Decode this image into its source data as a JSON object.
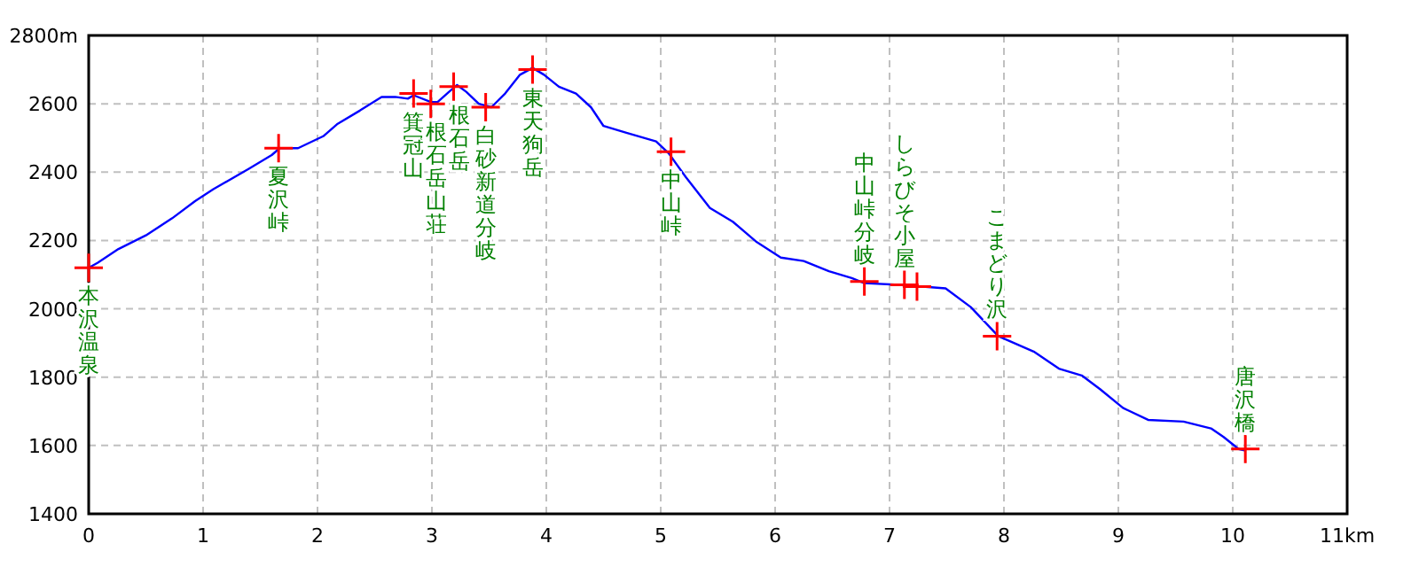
{
  "chart_data": {
    "type": "line",
    "xlim": [
      0,
      11
    ],
    "ylim": [
      1400,
      2800
    ],
    "xticks": [
      0,
      1,
      2,
      3,
      4,
      5,
      6,
      7,
      8,
      9,
      10,
      {
        "value": 11,
        "label": "11km"
      }
    ],
    "yticks": [
      1400,
      1600,
      1800,
      2000,
      2200,
      2400,
      2600,
      {
        "value": 2800,
        "label": "2800m"
      }
    ],
    "grid": true,
    "series": [
      {
        "color": "#0000ff",
        "x": [
          0,
          0.08,
          0.26,
          0.5,
          0.73,
          0.93,
          1.09,
          1.4,
          1.6,
          1.67,
          1.83,
          2.05,
          2.17,
          2.37,
          2.56,
          2.68,
          2.79,
          2.84,
          2.99,
          3.05,
          3.15,
          3.22,
          3.3,
          3.41,
          3.52,
          3.64,
          3.77,
          3.88,
          3.98,
          4.11,
          4.26,
          4.39,
          4.5,
          4.7,
          4.96,
          5.07,
          5.22,
          5.43,
          5.63,
          5.84,
          6.05,
          6.25,
          6.47,
          6.67,
          6.78,
          7.09,
          7.29,
          7.49,
          7.71,
          7.95,
          8.26,
          8.48,
          8.68,
          8.84,
          9.04,
          9.26,
          9.57,
          9.81,
          9.92,
          10.05,
          10.11
        ],
        "values": [
          2120,
          2135,
          2175,
          2215,
          2265,
          2315,
          2350,
          2410,
          2450,
          2470,
          2470,
          2505,
          2540,
          2580,
          2620,
          2620,
          2615,
          2625,
          2605,
          2605,
          2635,
          2655,
          2635,
          2600,
          2590,
          2630,
          2685,
          2705,
          2685,
          2650,
          2630,
          2590,
          2535,
          2515,
          2490,
          2455,
          2385,
          2295,
          2255,
          2195,
          2150,
          2140,
          2110,
          2090,
          2075,
          2070,
          2065,
          2060,
          2005,
          1920,
          1875,
          1825,
          1805,
          1765,
          1710,
          1675,
          1670,
          1650,
          1625,
          1590,
          1585
        ]
      },
      {
        "type": "scatter",
        "color": "#ff0000",
        "marker": "cross",
        "x": [
          0,
          1.66,
          2.84,
          2.99,
          3.19,
          3.47,
          3.88,
          5.09,
          6.78,
          7.13,
          7.24,
          7.94,
          10.11
        ],
        "values": [
          2120,
          2470,
          2630,
          2600,
          2650,
          2590,
          2700,
          2460,
          2080,
          2070,
          2065,
          1920,
          1590
        ]
      }
    ],
    "annotations": [
      {
        "text": "本沢温泉",
        "x": 0,
        "y": 2120
      },
      {
        "text": "夏沢峠",
        "x": 1.66,
        "y": 2470
      },
      {
        "text": "箕冠山",
        "x": 2.84,
        "y": 2630
      },
      {
        "text": "根石岳山荘",
        "x": 2.99,
        "y": 2600
      },
      {
        "text": "根石岳",
        "x": 3.19,
        "y": 2650
      },
      {
        "text": "白砂新道分岐",
        "x": 3.47,
        "y": 2590
      },
      {
        "text": "東天狗岳",
        "x": 3.88,
        "y": 2700
      },
      {
        "text": "中山峠",
        "x": 5.09,
        "y": 2460
      },
      {
        "text": "中山峠分岐",
        "x": 6.78,
        "y": 2080
      },
      {
        "text": "しらびそ小屋",
        "x": 7.13,
        "y": 2070
      },
      {
        "text": "こまどり沢",
        "x": 7.94,
        "y": 1920
      },
      {
        "text": "唐沢橋",
        "x": 10.11,
        "y": 1590
      }
    ]
  }
}
